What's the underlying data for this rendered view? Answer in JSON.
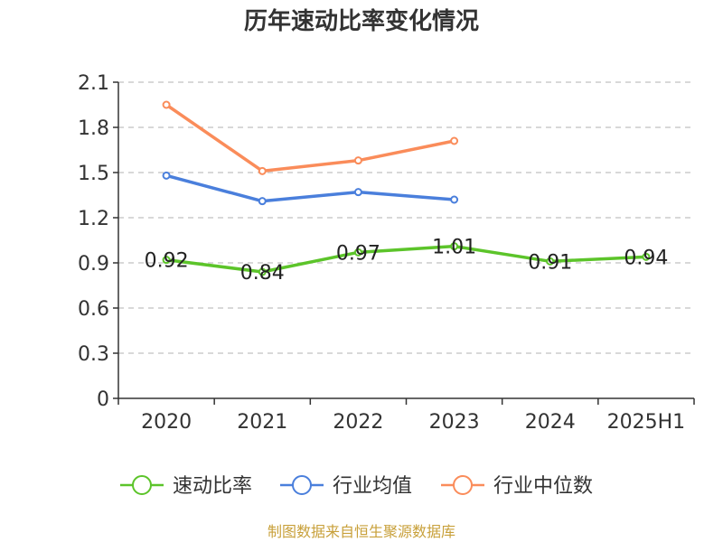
{
  "chart_data": {
    "type": "line",
    "title": "历年速动比率变化情况",
    "categories": [
      "2020",
      "2021",
      "2022",
      "2023",
      "2024",
      "2025H1"
    ],
    "y_ticks": [
      "0",
      "0.3",
      "0.6",
      "0.9",
      "1.2",
      "1.5",
      "1.8",
      "2.1"
    ],
    "ylim": [
      0,
      2.1
    ],
    "grid": true,
    "legend_position": "bottom",
    "series": [
      {
        "name": "速动比率",
        "color": "#5cc42a",
        "values": [
          0.92,
          0.84,
          0.97,
          1.01,
          0.91,
          0.94
        ],
        "labels": [
          "0.92",
          "0.84",
          "0.97",
          "1.01",
          "0.91",
          "0.94"
        ]
      },
      {
        "name": "行业均值",
        "color": "#4a7fdc",
        "values": [
          1.48,
          1.31,
          1.37,
          1.32,
          null,
          null
        ]
      },
      {
        "name": "行业中位数",
        "color": "#fa8c5a",
        "values": [
          1.95,
          1.51,
          1.58,
          1.71,
          null,
          null
        ]
      }
    ]
  },
  "footer": {
    "source": "制图数据来自恒生聚源数据库"
  }
}
